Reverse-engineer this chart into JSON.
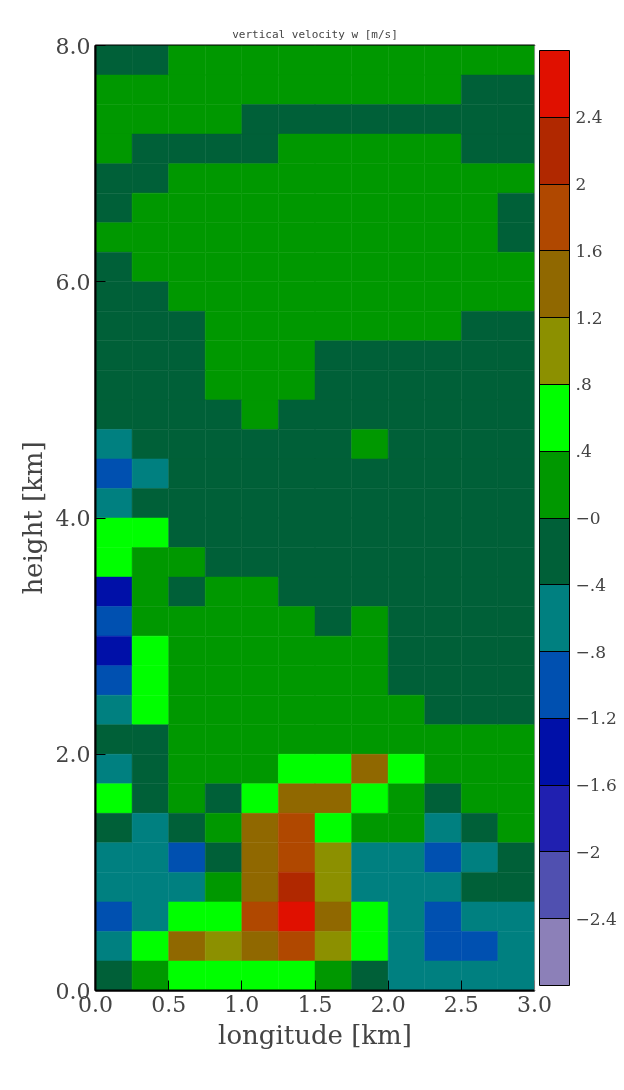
{
  "chart_data": {
    "type": "heatmap",
    "title": "vertical velocity w [m/s]",
    "xlabel": "longitude [km]",
    "ylabel": "height [km]",
    "x": [
      0.125,
      0.375,
      0.625,
      0.875,
      1.125,
      1.375,
      1.625,
      1.875,
      2.125,
      2.375,
      2.625,
      2.875
    ],
    "y": [
      7.875,
      7.625,
      7.375,
      7.125,
      6.875,
      6.625,
      6.375,
      6.125,
      5.875,
      5.625,
      5.375,
      5.125,
      4.875,
      4.625,
      4.375,
      4.125,
      3.875,
      3.625,
      3.375,
      3.125,
      2.875,
      2.625,
      2.375,
      2.125,
      1.875,
      1.625,
      1.375,
      1.125,
      0.875,
      0.625,
      0.375,
      0.125
    ],
    "xlim": [
      0,
      3
    ],
    "ylim": [
      0,
      8
    ],
    "xticks": [
      {
        "value": 0,
        "label": "0.0"
      },
      {
        "value": 0.5,
        "label": "0.5"
      },
      {
        "value": 1,
        "label": "1.0"
      },
      {
        "value": 1.5,
        "label": "1.5"
      },
      {
        "value": 2,
        "label": "2.0"
      },
      {
        "value": 2.5,
        "label": "2.5"
      },
      {
        "value": 3,
        "label": "3.0"
      }
    ],
    "yticks": [
      {
        "value": 0,
        "label": "0.0"
      },
      {
        "value": 2,
        "label": "2.0"
      },
      {
        "value": 4,
        "label": "4.0"
      },
      {
        "value": 6,
        "label": "6.0"
      },
      {
        "value": 8,
        "label": "8.0"
      }
    ],
    "clim": [
      -2.8,
      2.8
    ],
    "cticks": [
      {
        "value": -2.4,
        "label": "−2.4"
      },
      {
        "value": -2,
        "label": "−2"
      },
      {
        "value": -1.6,
        "label": "−1.6"
      },
      {
        "value": -1.2,
        "label": "−1.2"
      },
      {
        "value": -0.8,
        "label": "−.8"
      },
      {
        "value": -0.4,
        "label": "−.4"
      },
      {
        "value": 0,
        "label": "−0"
      },
      {
        "value": 0.4,
        "label": ".4"
      },
      {
        "value": 0.8,
        "label": ".8"
      },
      {
        "value": 1.2,
        "label": "1.2"
      },
      {
        "value": 1.6,
        "label": "1.6"
      },
      {
        "value": 2,
        "label": "2"
      },
      {
        "value": 2.4,
        "label": "2.4"
      }
    ],
    "colors": [
      "#8c80b8",
      "#5050b0",
      "#2020b0",
      "#0010a8",
      "#0050b0",
      "#008080",
      "#006038",
      "#009800",
      "#00ff00",
      "#8c9000",
      "#906800",
      "#b04800",
      "#b02800",
      "#e01000"
    ],
    "cells": [
      [
        -0.2,
        -0.2,
        0.2,
        0.2,
        0.2,
        0.2,
        0.2,
        0.2,
        0.2,
        0.2,
        0.2,
        0.2
      ],
      [
        0.2,
        0.2,
        0.2,
        0.2,
        0.2,
        0.2,
        0.2,
        0.2,
        0.2,
        0.2,
        -0.2,
        -0.2
      ],
      [
        0.2,
        0.2,
        0.2,
        0.2,
        -0.2,
        -0.2,
        -0.2,
        -0.2,
        -0.2,
        -0.2,
        -0.2,
        -0.2
      ],
      [
        0.2,
        -0.2,
        -0.2,
        -0.2,
        -0.2,
        0.2,
        0.2,
        0.2,
        0.2,
        0.2,
        -0.2,
        -0.2
      ],
      [
        -0.2,
        -0.2,
        0.2,
        0.2,
        0.2,
        0.2,
        0.2,
        0.2,
        0.2,
        0.2,
        0.2,
        0.2
      ],
      [
        -0.2,
        0.2,
        0.2,
        0.2,
        0.2,
        0.2,
        0.2,
        0.2,
        0.2,
        0.2,
        0.2,
        -0.2
      ],
      [
        0.2,
        0.2,
        0.2,
        0.2,
        0.2,
        0.2,
        0.2,
        0.2,
        0.2,
        0.2,
        0.2,
        -0.2
      ],
      [
        -0.2,
        0.2,
        0.2,
        0.2,
        0.2,
        0.2,
        0.2,
        0.2,
        0.2,
        0.2,
        0.2,
        0.2
      ],
      [
        -0.2,
        -0.2,
        0.2,
        0.2,
        0.2,
        0.2,
        0.2,
        0.2,
        0.2,
        0.2,
        0.2,
        0.2
      ],
      [
        -0.2,
        -0.2,
        -0.2,
        0.2,
        0.2,
        0.2,
        0.2,
        0.2,
        0.2,
        0.2,
        -0.2,
        -0.2
      ],
      [
        -0.2,
        -0.2,
        -0.2,
        0.2,
        0.2,
        0.2,
        -0.2,
        -0.2,
        -0.2,
        -0.2,
        -0.2,
        -0.2
      ],
      [
        -0.2,
        -0.2,
        -0.2,
        0.2,
        0.2,
        0.2,
        -0.2,
        -0.2,
        -0.2,
        -0.2,
        -0.2,
        -0.2
      ],
      [
        -0.2,
        -0.2,
        -0.2,
        -0.2,
        0.2,
        -0.2,
        -0.2,
        -0.2,
        -0.2,
        -0.2,
        -0.2,
        -0.2
      ],
      [
        -0.6,
        -0.2,
        -0.2,
        -0.2,
        -0.2,
        -0.2,
        -0.2,
        0.2,
        -0.2,
        -0.2,
        -0.2,
        -0.2
      ],
      [
        -1.0,
        -0.6,
        -0.2,
        -0.2,
        -0.2,
        -0.2,
        -0.2,
        -0.2,
        -0.2,
        -0.2,
        -0.2,
        -0.2
      ],
      [
        -0.6,
        -0.2,
        -0.2,
        -0.2,
        -0.2,
        -0.2,
        -0.2,
        -0.2,
        -0.2,
        -0.2,
        -0.2,
        -0.2
      ],
      [
        0.6,
        0.6,
        -0.2,
        -0.2,
        -0.2,
        -0.2,
        -0.2,
        -0.2,
        -0.2,
        -0.2,
        -0.2,
        -0.2
      ],
      [
        0.6,
        0.2,
        0.2,
        -0.2,
        -0.2,
        -0.2,
        -0.2,
        -0.2,
        -0.2,
        -0.2,
        -0.2,
        -0.2
      ],
      [
        -1.4,
        0.2,
        -0.2,
        0.2,
        0.2,
        -0.2,
        -0.2,
        -0.2,
        -0.2,
        -0.2,
        -0.2,
        -0.2
      ],
      [
        -1.0,
        0.2,
        0.2,
        0.2,
        0.2,
        0.2,
        -0.2,
        0.2,
        -0.2,
        -0.2,
        -0.2,
        -0.2
      ],
      [
        -1.4,
        0.6,
        0.2,
        0.2,
        0.2,
        0.2,
        0.2,
        0.2,
        -0.2,
        -0.2,
        -0.2,
        -0.2
      ],
      [
        -1.0,
        0.6,
        0.2,
        0.2,
        0.2,
        0.2,
        0.2,
        0.2,
        -0.2,
        -0.2,
        -0.2,
        -0.2
      ],
      [
        -0.6,
        0.6,
        0.2,
        0.2,
        0.2,
        0.2,
        0.2,
        0.2,
        0.2,
        -0.2,
        -0.2,
        -0.2
      ],
      [
        -0.2,
        -0.2,
        0.2,
        0.2,
        0.2,
        0.2,
        0.2,
        0.2,
        0.2,
        0.2,
        0.2,
        0.2
      ],
      [
        -0.6,
        -0.2,
        0.2,
        0.2,
        0.2,
        0.6,
        0.6,
        1.4,
        0.6,
        0.2,
        0.2,
        0.2
      ],
      [
        0.6,
        -0.2,
        0.2,
        -0.2,
        0.6,
        1.4,
        1.4,
        0.6,
        0.2,
        -0.2,
        0.2,
        0.2
      ],
      [
        -0.2,
        -0.6,
        -0.2,
        0.2,
        1.4,
        1.8,
        0.6,
        0.2,
        0.2,
        -0.6,
        -0.2,
        0.2
      ],
      [
        -0.6,
        -0.6,
        -1.0,
        -0.2,
        1.4,
        1.8,
        1.0,
        -0.6,
        -0.6,
        -1.0,
        -0.6,
        -0.2
      ],
      [
        -0.6,
        -0.6,
        -0.6,
        0.2,
        1.4,
        2.2,
        1.0,
        -0.6,
        -0.6,
        -0.6,
        -0.2,
        -0.2
      ],
      [
        -1.0,
        -0.6,
        0.6,
        0.6,
        1.8,
        2.6,
        1.4,
        0.6,
        -0.6,
        -1.0,
        -0.6,
        -0.6
      ],
      [
        -0.6,
        0.6,
        1.4,
        1.0,
        1.4,
        1.8,
        1.0,
        0.6,
        -0.6,
        -1.0,
        -1.0,
        -0.6
      ],
      [
        -0.2,
        0.2,
        0.6,
        0.6,
        0.6,
        0.6,
        0.2,
        -0.2,
        -0.6,
        -0.6,
        -0.6,
        -0.6
      ]
    ]
  }
}
